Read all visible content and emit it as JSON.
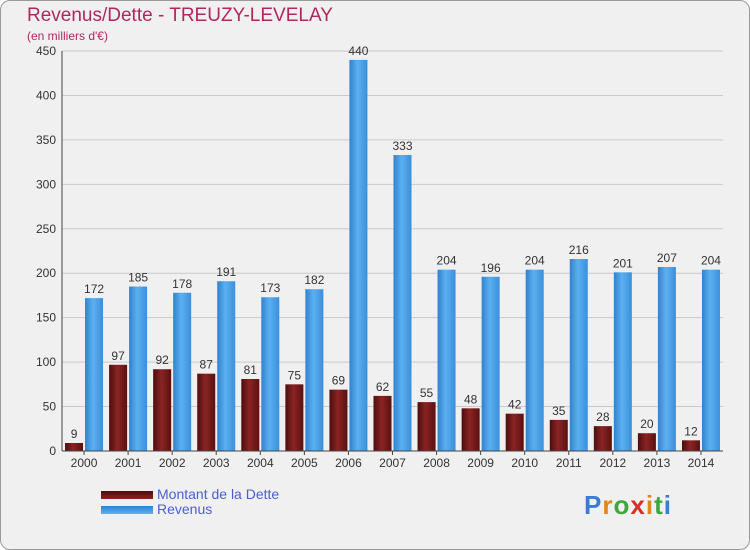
{
  "chart_data": {
    "type": "bar",
    "title": "Revenus/Dette - TREUZY-LEVELAY",
    "subtitle": "(en milliers d'€)",
    "categories": [
      "2000",
      "2001",
      "2002",
      "2003",
      "2004",
      "2005",
      "2006",
      "2007",
      "2008",
      "2009",
      "2010",
      "2011",
      "2012",
      "2013",
      "2014"
    ],
    "series": [
      {
        "name": "Montant de la Dette",
        "color": "#7a1a1a",
        "values": [
          9,
          97,
          92,
          87,
          81,
          75,
          69,
          62,
          55,
          48,
          42,
          35,
          28,
          20,
          12
        ]
      },
      {
        "name": "Revenus",
        "color": "#3d95e0",
        "values": [
          172,
          185,
          178,
          191,
          173,
          182,
          440,
          333,
          204,
          196,
          204,
          216,
          201,
          207,
          204
        ]
      }
    ],
    "ylim": [
      0,
      450
    ],
    "yticks": [
      0,
      50,
      100,
      150,
      200,
      250,
      300,
      350,
      400,
      450
    ],
    "grid": true,
    "legend_position": "bottom-left"
  },
  "logo": {
    "letters": [
      "P",
      "r",
      "o",
      "x",
      "i",
      "t",
      "i"
    ],
    "colors": [
      "#3a7bd5",
      "#e0861a",
      "#3fa63f",
      "#d4302a",
      "#e0861a",
      "#3fa63f",
      "#3a7bd5"
    ]
  }
}
